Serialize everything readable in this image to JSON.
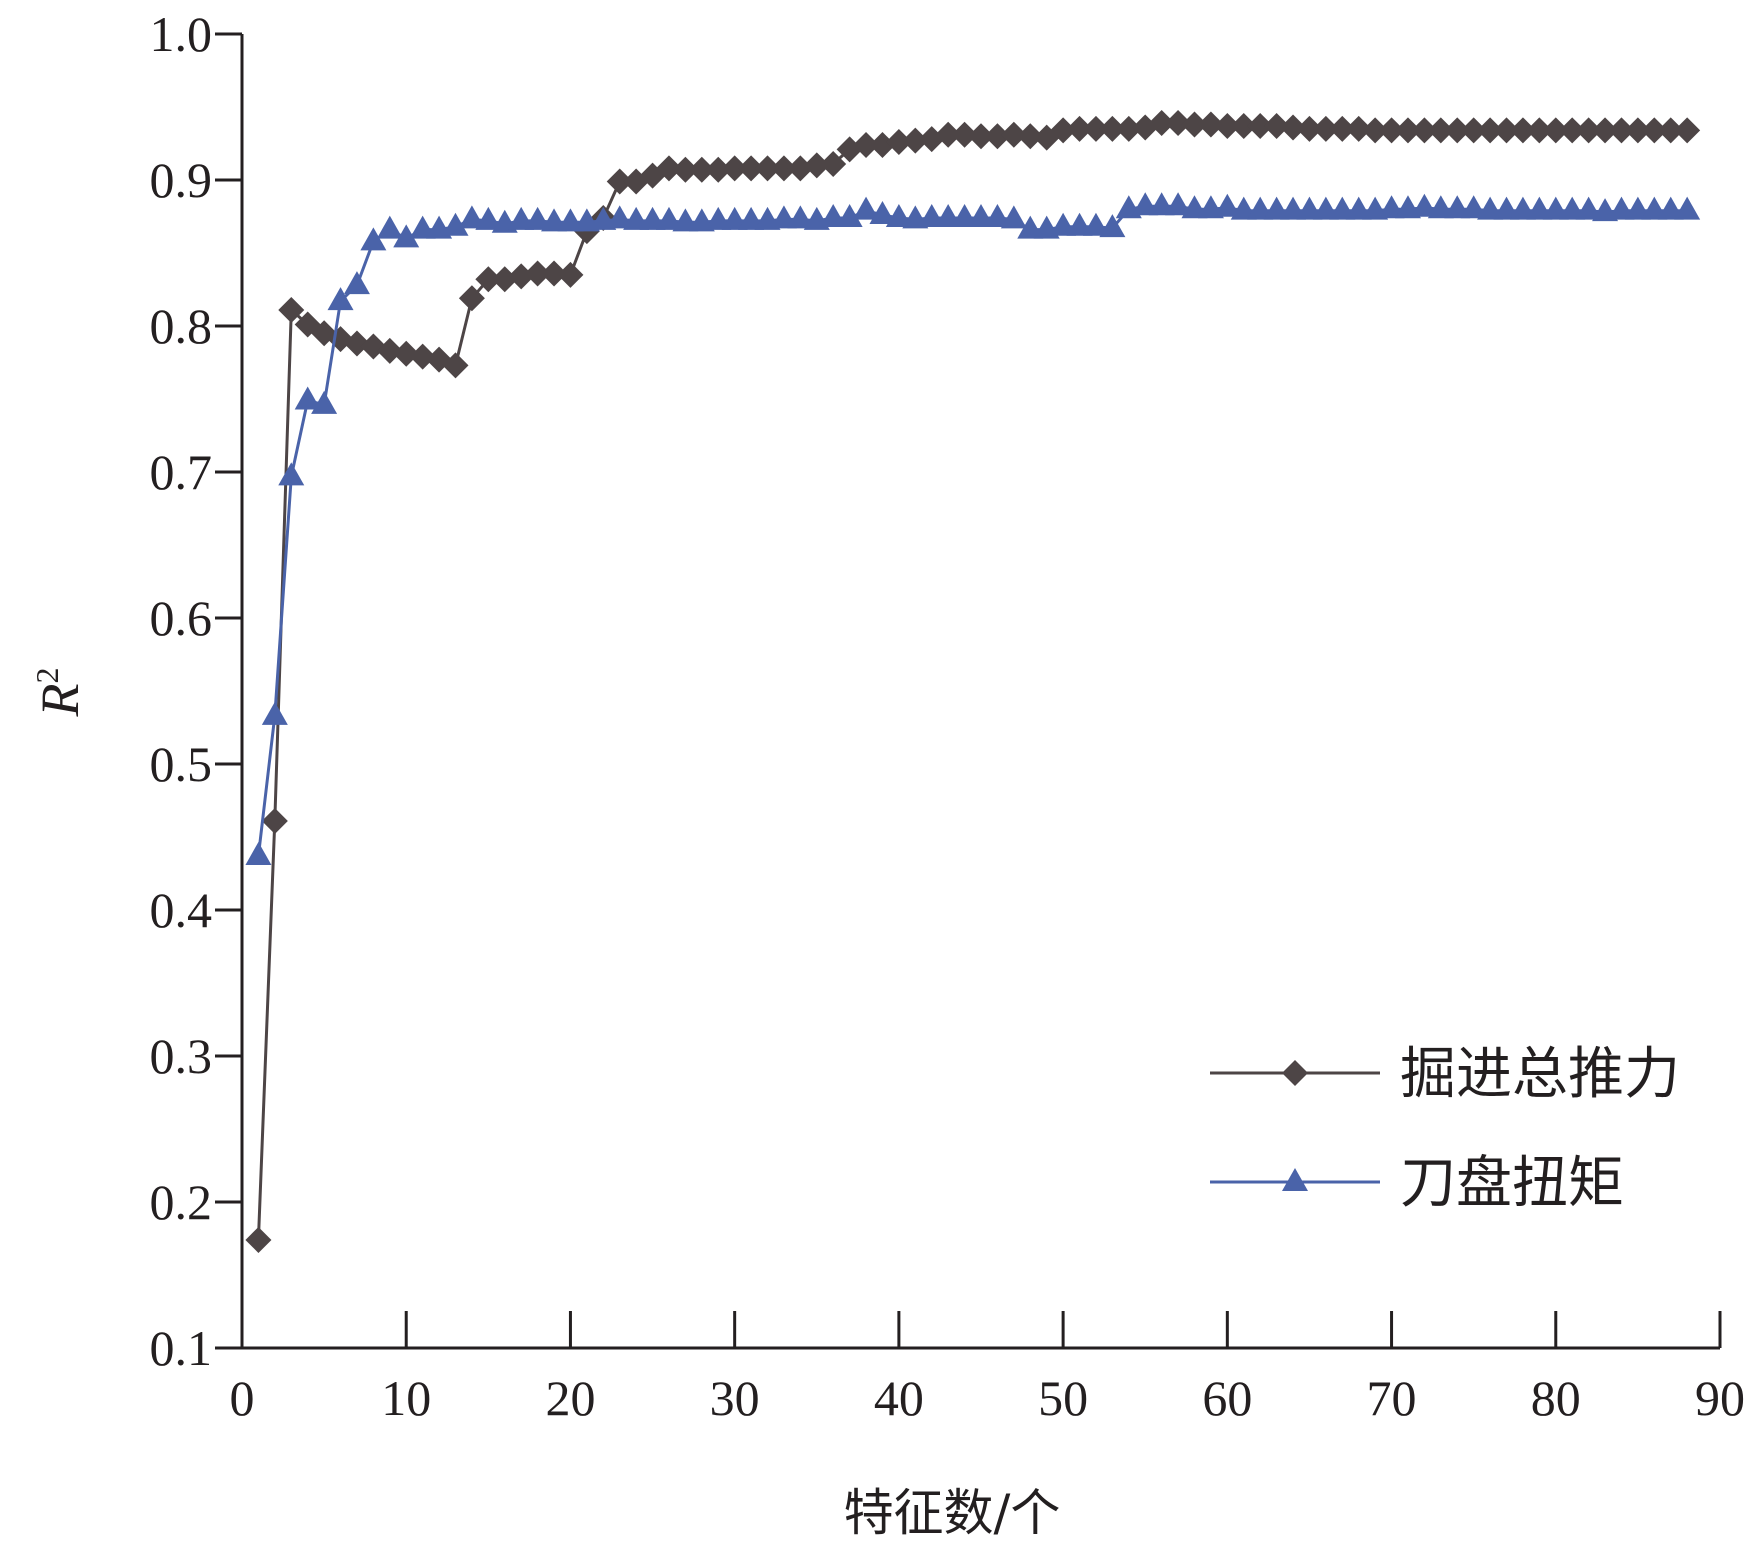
{
  "chart_data": {
    "type": "line",
    "xlabel": "特征数/个",
    "ylabel": "R",
    "ylabel_superscript": "2",
    "xlim": [
      0,
      90
    ],
    "ylim": [
      0.1,
      1.0
    ],
    "xticks": [
      "0",
      "10",
      "20",
      "30",
      "40",
      "50",
      "60",
      "70",
      "80",
      "90"
    ],
    "yticks": [
      "0.1",
      "0.2",
      "0.3",
      "0.4",
      "0.5",
      "0.6",
      "0.7",
      "0.8",
      "0.9",
      "1.0"
    ],
    "xtick_values": [
      0,
      10,
      20,
      30,
      40,
      50,
      60,
      70,
      80,
      90
    ],
    "ytick_values": [
      0.1,
      0.2,
      0.3,
      0.4,
      0.5,
      0.6,
      0.7,
      0.8,
      0.9,
      1.0
    ],
    "grid": false,
    "legend_position": "bottom-right",
    "x": [
      1,
      2,
      3,
      4,
      5,
      6,
      7,
      8,
      9,
      10,
      11,
      12,
      13,
      14,
      15,
      16,
      17,
      18,
      19,
      20,
      21,
      22,
      23,
      24,
      25,
      26,
      27,
      28,
      29,
      30,
      31,
      32,
      33,
      34,
      35,
      36,
      37,
      38,
      39,
      40,
      41,
      42,
      43,
      44,
      45,
      46,
      47,
      48,
      49,
      50,
      51,
      52,
      53,
      54,
      55,
      56,
      57,
      58,
      59,
      60,
      61,
      62,
      63,
      64,
      65,
      66,
      67,
      68,
      69,
      70,
      71,
      72,
      73,
      74,
      75,
      76,
      77,
      78,
      79,
      80,
      81,
      82,
      83,
      84,
      85,
      86,
      87,
      88
    ],
    "series": [
      {
        "name": "掘进总推力",
        "color": "#4d4546",
        "marker": "diamond",
        "values": [
          0.174,
          0.461,
          0.811,
          0.801,
          0.795,
          0.791,
          0.788,
          0.786,
          0.783,
          0.781,
          0.779,
          0.777,
          0.773,
          0.819,
          0.832,
          0.832,
          0.834,
          0.836,
          0.836,
          0.835,
          0.865,
          0.874,
          0.899,
          0.899,
          0.903,
          0.908,
          0.907,
          0.907,
          0.907,
          0.908,
          0.908,
          0.908,
          0.908,
          0.908,
          0.91,
          0.911,
          0.921,
          0.924,
          0.924,
          0.926,
          0.927,
          0.928,
          0.931,
          0.931,
          0.93,
          0.93,
          0.931,
          0.93,
          0.929,
          0.934,
          0.935,
          0.935,
          0.935,
          0.935,
          0.936,
          0.939,
          0.939,
          0.938,
          0.938,
          0.937,
          0.937,
          0.937,
          0.937,
          0.936,
          0.935,
          0.935,
          0.935,
          0.935,
          0.934,
          0.934,
          0.934,
          0.934,
          0.934,
          0.934,
          0.934,
          0.934,
          0.934,
          0.934,
          0.934,
          0.934,
          0.934,
          0.934,
          0.934,
          0.934,
          0.934,
          0.934,
          0.934,
          0.934
        ]
      },
      {
        "name": "刀盘扭矩",
        "color": "#4a63a9",
        "marker": "triangle",
        "values": [
          0.437,
          0.533,
          0.697,
          0.749,
          0.746,
          0.817,
          0.828,
          0.858,
          0.866,
          0.86,
          0.866,
          0.866,
          0.868,
          0.873,
          0.872,
          0.87,
          0.872,
          0.872,
          0.871,
          0.871,
          0.871,
          0.872,
          0.873,
          0.872,
          0.872,
          0.872,
          0.871,
          0.871,
          0.872,
          0.872,
          0.872,
          0.872,
          0.873,
          0.873,
          0.872,
          0.874,
          0.874,
          0.879,
          0.876,
          0.874,
          0.873,
          0.874,
          0.874,
          0.874,
          0.874,
          0.874,
          0.873,
          0.866,
          0.866,
          0.868,
          0.868,
          0.868,
          0.867,
          0.88,
          0.882,
          0.882,
          0.882,
          0.88,
          0.88,
          0.881,
          0.879,
          0.879,
          0.879,
          0.879,
          0.879,
          0.879,
          0.879,
          0.879,
          0.879,
          0.88,
          0.88,
          0.881,
          0.88,
          0.88,
          0.88,
          0.879,
          0.879,
          0.879,
          0.879,
          0.879,
          0.879,
          0.879,
          0.878,
          0.879,
          0.879,
          0.879,
          0.879,
          0.879
        ]
      }
    ]
  }
}
